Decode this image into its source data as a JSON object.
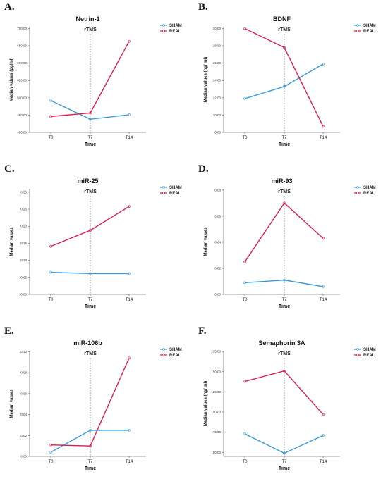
{
  "chart_data": [
    {
      "type": "line",
      "letter": "A.",
      "title": "Netrin-1",
      "annotation": "rTMS",
      "xlabel": "Time",
      "ylabel": "Median values (pg/ml)",
      "categories": [
        "T0",
        "T7",
        "T14"
      ],
      "ylim": [
        400,
        705
      ],
      "yticks": [
        "400,00",
        "450,00",
        "500,00",
        "550,00",
        "600,00",
        "650,00",
        "700,00"
      ],
      "ytick_values": [
        400,
        450,
        500,
        550,
        600,
        650,
        700
      ],
      "series": [
        {
          "name": "SHAM",
          "color": "#3a9ad9",
          "values": [
            492,
            438,
            451
          ]
        },
        {
          "name": "REAL",
          "color": "#d81e4b",
          "values": [
            446,
            456,
            663
          ]
        }
      ],
      "legend": "top-right",
      "grid": false
    },
    {
      "type": "line",
      "letter": "B.",
      "title": "BDNF",
      "annotation": "rTMS",
      "xlabel": "Time",
      "ylabel": "Median values (ng/ ml)",
      "categories": [
        "T0",
        "T7",
        "T14"
      ],
      "ylim": [
        8,
        20.2
      ],
      "yticks": [
        "8,00",
        "10,00",
        "12,00",
        "14,00",
        "16,00",
        "18,00",
        "20,00"
      ],
      "ytick_values": [
        8,
        10,
        12,
        14,
        16,
        18,
        20
      ],
      "series": [
        {
          "name": "SHAM",
          "color": "#3a9ad9",
          "values": [
            11.9,
            13.3,
            15.9
          ]
        },
        {
          "name": "REAL",
          "color": "#d81e4b",
          "values": [
            20.0,
            17.8,
            8.7
          ]
        }
      ],
      "legend": "top-right",
      "grid": false
    },
    {
      "type": "line",
      "letter": "C.",
      "title": "miR-25",
      "annotation": "rTMS",
      "xlabel": "Time",
      "ylabel": "Median values",
      "categories": [
        "T0",
        "T7",
        "T14"
      ],
      "ylim": [
        0,
        0.31
      ],
      "yticks": [
        "0,00",
        "0,05",
        "0,10",
        "0,15",
        "0,20",
        "0,25",
        "0,30"
      ],
      "ytick_values": [
        0,
        0.05,
        0.1,
        0.15,
        0.2,
        0.25,
        0.3
      ],
      "series": [
        {
          "name": "SHAM",
          "color": "#3a9ad9",
          "values": [
            0.065,
            0.061,
            0.061
          ]
        },
        {
          "name": "REAL",
          "color": "#d81e4b",
          "values": [
            0.141,
            0.188,
            0.258
          ]
        }
      ],
      "legend": "top-right",
      "grid": false
    },
    {
      "type": "line",
      "letter": "D.",
      "title": "miR-93",
      "annotation": "rTMS",
      "xlabel": "Time",
      "ylabel": "Median values",
      "categories": [
        "T0",
        "T7",
        "T14"
      ],
      "ylim": [
        0,
        0.081
      ],
      "yticks": [
        "0,00",
        "0,02",
        "0,04",
        "0,06",
        "0,08"
      ],
      "ytick_values": [
        0,
        0.02,
        0.04,
        0.06,
        0.08
      ],
      "series": [
        {
          "name": "SHAM",
          "color": "#3a9ad9",
          "values": [
            0.009,
            0.011,
            0.006
          ]
        },
        {
          "name": "REAL",
          "color": "#d81e4b",
          "values": [
            0.025,
            0.07,
            0.043
          ]
        }
      ],
      "legend": "top-right",
      "grid": false
    },
    {
      "type": "line",
      "letter": "E.",
      "title": "miR-106b",
      "annotation": "rTMS",
      "xlabel": "Time",
      "ylabel": "Median values",
      "categories": [
        "T0",
        "T7",
        "T14"
      ],
      "ylim": [
        0,
        0.101
      ],
      "yticks": [
        "0,00",
        "0,02",
        "0,04",
        "0,06",
        "0,08",
        "0,10"
      ],
      "ytick_values": [
        0,
        0.02,
        0.04,
        0.06,
        0.08,
        0.1
      ],
      "series": [
        {
          "name": "SHAM",
          "color": "#3a9ad9",
          "values": [
            0.004,
            0.025,
            0.025
          ]
        },
        {
          "name": "REAL",
          "color": "#d81e4b",
          "values": [
            0.011,
            0.01,
            0.094
          ]
        }
      ],
      "legend": "top-right",
      "grid": false
    },
    {
      "type": "line",
      "letter": "F.",
      "title": "Semaphorin 3A",
      "annotation": "rTMS",
      "xlabel": "Time",
      "ylabel": "Median values (ng/ ml)",
      "categories": [
        "T0",
        "T7",
        "T14"
      ],
      "ylim": [
        45,
        176
      ],
      "yticks": [
        "50,00",
        "75,00",
        "100,00",
        "125,00",
        "150,00",
        "175,00"
      ],
      "ytick_values": [
        50,
        75,
        100,
        125,
        150,
        175
      ],
      "series": [
        {
          "name": "SHAM",
          "color": "#3a9ad9",
          "values": [
            73,
            49,
            71
          ]
        },
        {
          "name": "REAL",
          "color": "#d81e4b",
          "values": [
            138,
            151,
            97
          ]
        }
      ],
      "legend": "top-right",
      "grid": false
    }
  ]
}
